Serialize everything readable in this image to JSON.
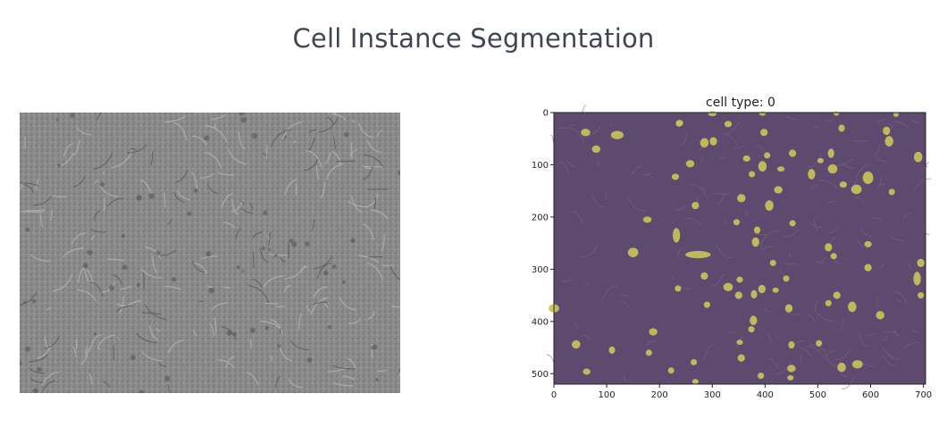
{
  "page": {
    "title": "Cell Instance Segmentation"
  },
  "left_image": {
    "description_icon": "microscopy-image",
    "background_color": "#8a8a8a"
  },
  "chart_data": {
    "type": "heatmap",
    "title": "cell type: 0",
    "xlabel": "",
    "ylabel": "",
    "xlim": [
      0,
      704
    ],
    "ylim": [
      520,
      0
    ],
    "x_ticks": [
      0,
      100,
      200,
      300,
      400,
      500,
      600,
      700
    ],
    "y_ticks": [
      0,
      100,
      200,
      300,
      400,
      500
    ],
    "background_color": "#5e4a6e",
    "mask_color": "#c9c25a",
    "cells": [
      [
        300,
        2,
        8,
        5
      ],
      [
        395,
        2,
        6,
        4
      ],
      [
        535,
        2,
        5,
        4
      ],
      [
        648,
        4,
        5,
        4
      ],
      [
        238,
        20,
        7,
        6
      ],
      [
        237,
        22,
        6,
        5
      ],
      [
        330,
        22,
        7,
        6
      ],
      [
        545,
        30,
        6,
        7
      ],
      [
        60,
        38,
        9,
        7
      ],
      [
        120,
        43,
        12,
        8
      ],
      [
        398,
        38,
        7,
        7
      ],
      [
        630,
        35,
        7,
        8
      ],
      [
        285,
        58,
        8,
        9
      ],
      [
        302,
        55,
        7,
        8
      ],
      [
        635,
        55,
        8,
        10
      ],
      [
        80,
        70,
        8,
        7
      ],
      [
        452,
        78,
        7,
        7
      ],
      [
        525,
        78,
        6,
        9
      ],
      [
        690,
        85,
        8,
        10
      ],
      [
        365,
        88,
        7,
        6
      ],
      [
        404,
        82,
        6,
        6
      ],
      [
        505,
        92,
        6,
        5
      ],
      [
        258,
        98,
        8,
        7
      ],
      [
        395,
        103,
        8,
        10
      ],
      [
        430,
        108,
        7,
        5
      ],
      [
        528,
        108,
        9,
        9
      ],
      [
        230,
        123,
        7,
        6
      ],
      [
        375,
        118,
        6,
        6
      ],
      [
        488,
        118,
        7,
        10
      ],
      [
        595,
        125,
        10,
        12
      ],
      [
        548,
        138,
        7,
        6
      ],
      [
        573,
        147,
        10,
        9
      ],
      [
        425,
        148,
        8,
        7
      ],
      [
        640,
        152,
        6,
        6
      ],
      [
        355,
        164,
        8,
        8
      ],
      [
        268,
        178,
        7,
        7
      ],
      [
        408,
        178,
        8,
        10
      ],
      [
        177,
        205,
        8,
        6
      ],
      [
        346,
        210,
        6,
        6
      ],
      [
        452,
        212,
        6,
        6
      ],
      [
        385,
        225,
        6,
        7
      ],
      [
        232,
        235,
        7,
        14
      ],
      [
        382,
        248,
        7,
        9
      ],
      [
        595,
        252,
        7,
        6
      ],
      [
        520,
        258,
        7,
        8
      ],
      [
        150,
        268,
        10,
        9
      ],
      [
        273,
        272,
        24,
        7
      ],
      [
        530,
        275,
        6,
        6
      ],
      [
        415,
        288,
        6,
        6
      ],
      [
        595,
        297,
        7,
        7
      ],
      [
        695,
        288,
        7,
        8
      ],
      [
        285,
        313,
        7,
        7
      ],
      [
        352,
        320,
        6,
        6
      ],
      [
        440,
        318,
        6,
        6
      ],
      [
        688,
        318,
        7,
        13
      ],
      [
        235,
        337,
        6,
        6
      ],
      [
        330,
        334,
        9,
        8
      ],
      [
        394,
        338,
        7,
        8
      ],
      [
        420,
        340,
        6,
        5
      ],
      [
        350,
        350,
        7,
        7
      ],
      [
        379,
        348,
        6,
        8
      ],
      [
        536,
        350,
        7,
        7
      ],
      [
        695,
        350,
        6,
        6
      ],
      [
        290,
        368,
        6,
        6
      ],
      [
        520,
        365,
        6,
        6
      ],
      [
        445,
        375,
        7,
        8
      ],
      [
        565,
        372,
        8,
        10
      ],
      [
        0,
        375,
        10,
        8
      ],
      [
        378,
        398,
        7,
        9
      ],
      [
        618,
        388,
        8,
        8
      ],
      [
        374,
        415,
        6,
        6
      ],
      [
        188,
        420,
        8,
        7
      ],
      [
        42,
        444,
        8,
        8
      ],
      [
        352,
        440,
        6,
        5
      ],
      [
        450,
        445,
        6,
        7
      ],
      [
        110,
        455,
        6,
        7
      ],
      [
        502,
        442,
        6,
        6
      ],
      [
        180,
        460,
        6,
        6
      ],
      [
        355,
        470,
        7,
        7
      ],
      [
        265,
        478,
        6,
        6
      ],
      [
        575,
        482,
        10,
        8
      ],
      [
        545,
        488,
        8,
        9
      ],
      [
        450,
        490,
        8,
        7
      ],
      [
        62,
        496,
        7,
        6
      ],
      [
        222,
        494,
        6,
        6
      ],
      [
        268,
        515,
        6,
        5
      ],
      [
        392,
        504,
        6,
        6
      ],
      [
        448,
        508,
        6,
        5
      ]
    ]
  }
}
